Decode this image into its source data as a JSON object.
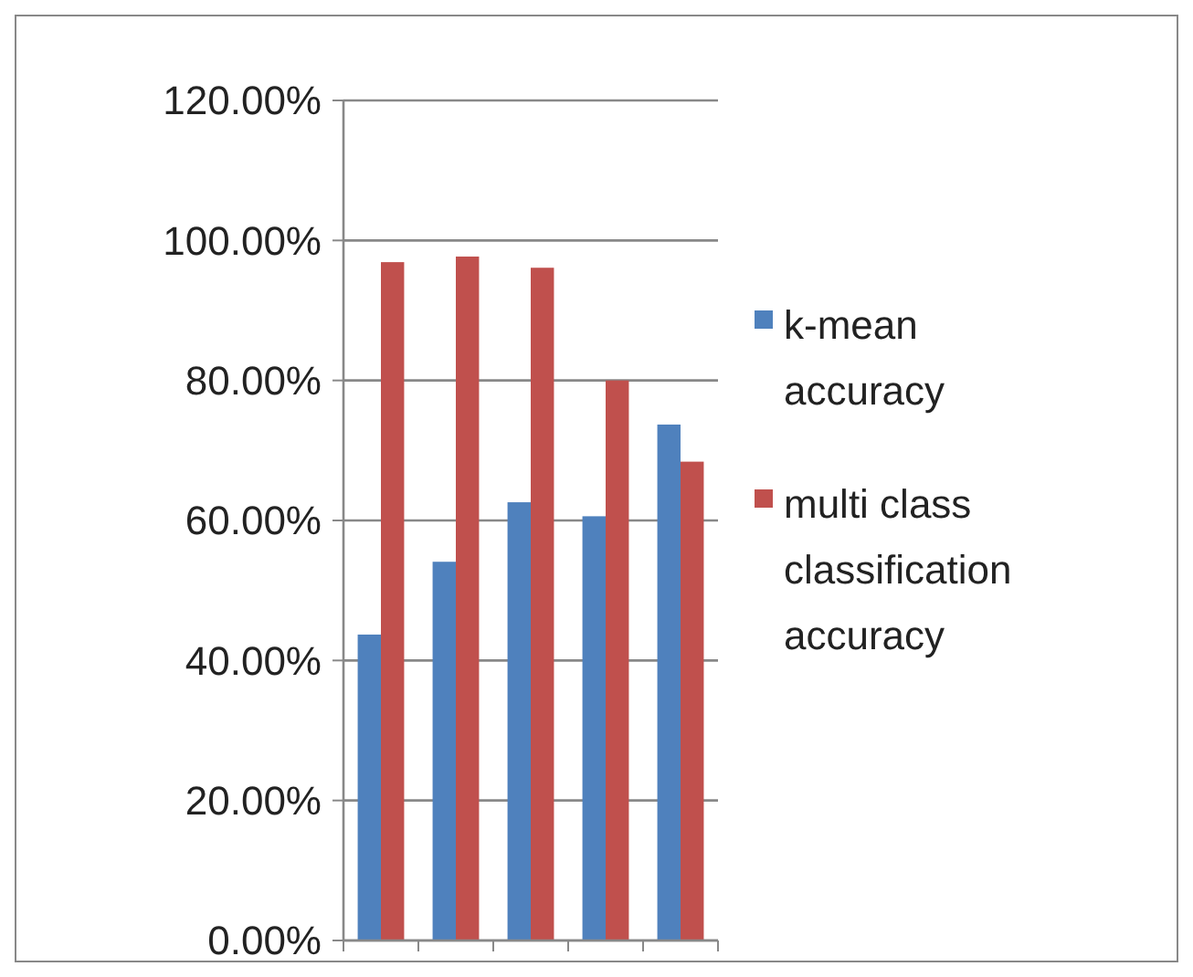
{
  "chart_data": {
    "type": "bar",
    "categories": [
      null,
      null,
      null,
      null,
      null
    ],
    "series": [
      {
        "name": "k-mean accuracy",
        "color": "#4f81bd",
        "values": [
          43.7,
          54.1,
          62.6,
          60.6,
          73.7
        ]
      },
      {
        "name": "multi class classification accuracy",
        "color": "#c0504d",
        "values": [
          96.9,
          97.7,
          96.1,
          80.0,
          68.4
        ]
      }
    ],
    "ylim": [
      0,
      120
    ],
    "yticks": [
      {
        "value": 0,
        "label": "0.00%"
      },
      {
        "value": 20,
        "label": "20.00%"
      },
      {
        "value": 40,
        "label": "40.00%"
      },
      {
        "value": 60,
        "label": "60.00%"
      },
      {
        "value": 80,
        "label": "80.00%"
      },
      {
        "value": 100,
        "label": "100.00%"
      },
      {
        "value": 120,
        "label": "120.00%"
      }
    ],
    "grid": "y",
    "legend": "right"
  }
}
